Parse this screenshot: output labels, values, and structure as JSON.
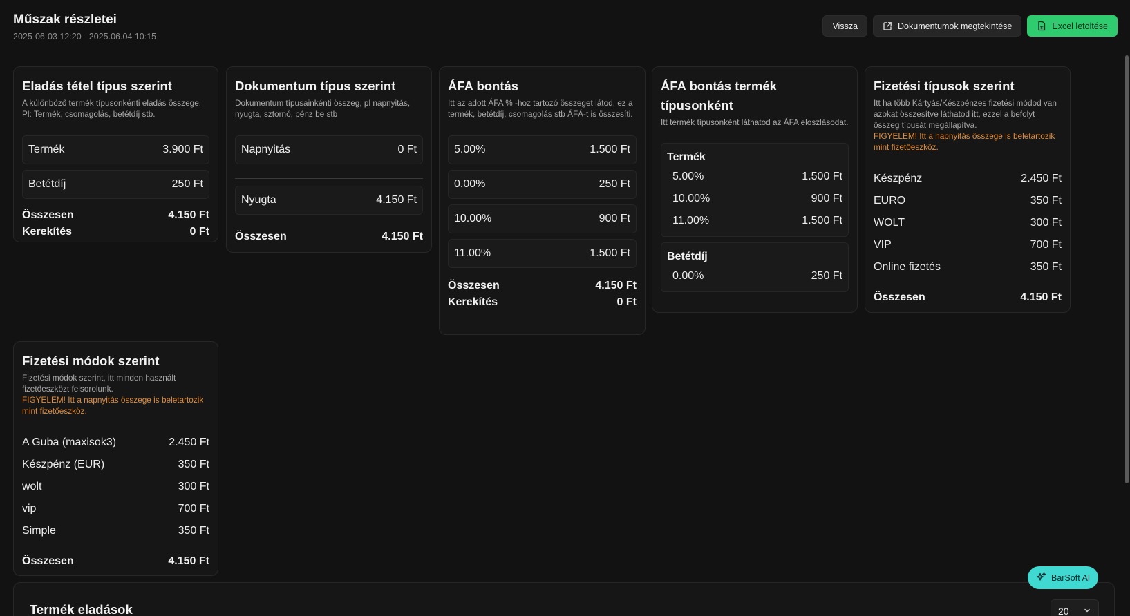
{
  "header": {
    "title": "Műszak részletei",
    "subtitle": "2025-06-03 12:20 - 2025.06.04 10:15",
    "back_label": "Vissza",
    "docs_label": "Dokumentumok megtekintése",
    "excel_label": "Excel letöltése"
  },
  "sales_by_item_type": {
    "title": "Eladás tétel típus szerint",
    "desc": "A különböző termék típusonkénti eladás összege. Pl: Termék, csomagolás, betétdíj stb.",
    "rows": [
      {
        "label": "Termék",
        "value": "3.900 Ft"
      },
      {
        "label": "Betétdíj",
        "value": "250 Ft"
      }
    ],
    "total_label": "Összesen",
    "total_value": "4.150 Ft",
    "rounding_label": "Kerekítés",
    "rounding_value": "0 Ft"
  },
  "by_document_type": {
    "title": "Dokumentum típus szerint",
    "desc": "Dokumentum típusainkénti összeg, pl napnyitás, nyugta, sztornó, pénz be stb",
    "rows": [
      {
        "label": "Napnyitás",
        "value": "0 Ft"
      },
      {
        "label": "Nyugta",
        "value": "4.150 Ft"
      }
    ],
    "total_label": "Összesen",
    "total_value": "4.150 Ft"
  },
  "vat_breakdown": {
    "title": "ÁFA bontás",
    "desc": "Itt az adott ÁFA % -hoz tartozó összeget látod, ez a termék, betétdíj, csomagolás stb ÁFÁ-t is összesíti.",
    "rows": [
      {
        "label": "5.00%",
        "value": "1.500 Ft"
      },
      {
        "label": "0.00%",
        "value": "250 Ft"
      },
      {
        "label": "10.00%",
        "value": "900 Ft"
      },
      {
        "label": "11.00%",
        "value": "1.500 Ft"
      }
    ],
    "total_label": "Összesen",
    "total_value": "4.150 Ft",
    "rounding_label": "Kerekítés",
    "rounding_value": "0 Ft"
  },
  "vat_by_product_type": {
    "title": "ÁFA bontás termék típusonként",
    "desc": "Itt termék típusonként láthatod az ÁFA eloszlásodat.",
    "groups": [
      {
        "name": "Termék",
        "rows": [
          {
            "label": "5.00%",
            "value": "1.500 Ft"
          },
          {
            "label": "10.00%",
            "value": "900 Ft"
          },
          {
            "label": "11.00%",
            "value": "1.500 Ft"
          }
        ]
      },
      {
        "name": "Betétdíj",
        "rows": [
          {
            "label": "0.00%",
            "value": "250 Ft"
          }
        ]
      }
    ]
  },
  "by_payment_type": {
    "title": "Fizetési típusok szerint",
    "desc": "Itt ha több Kártyás/Készpénzes fizetési módod van azokat összesítve láthatod itt, ezzel a befolyt összeg típusát megállapítva.",
    "warning": "FIGYELEM! Itt a napnyitás összege is beletartozik mint fizetőeszköz.",
    "rows": [
      {
        "label": "Készpénz",
        "value": "2.450 Ft"
      },
      {
        "label": "EURO",
        "value": "350 Ft"
      },
      {
        "label": "WOLT",
        "value": "300 Ft"
      },
      {
        "label": "VIP",
        "value": "700 Ft"
      },
      {
        "label": "Online fizetés",
        "value": "350 Ft"
      }
    ],
    "total_label": "Összesen",
    "total_value": "4.150 Ft"
  },
  "by_payment_method": {
    "title": "Fizetési módok szerint",
    "desc": "Fizetési módok szerint, itt minden használt fizetőeszközt felsorolunk.",
    "warning": "FIGYELEM! Itt a napnyitás összege is beletartozik mint fizetőeszköz.",
    "rows": [
      {
        "label": "A Guba (maxisok3)",
        "value": "2.450 Ft"
      },
      {
        "label": "Készpénz (EUR)",
        "value": "350 Ft"
      },
      {
        "label": "wolt",
        "value": "300 Ft"
      },
      {
        "label": "vip",
        "value": "700 Ft"
      },
      {
        "label": "Simple",
        "value": "350 Ft"
      }
    ],
    "total_label": "Összesen",
    "total_value": "4.150 Ft"
  },
  "ai_button_label": "BarSoft AI",
  "product_sales": {
    "title": "Termék eladások",
    "page_size": "20"
  }
}
